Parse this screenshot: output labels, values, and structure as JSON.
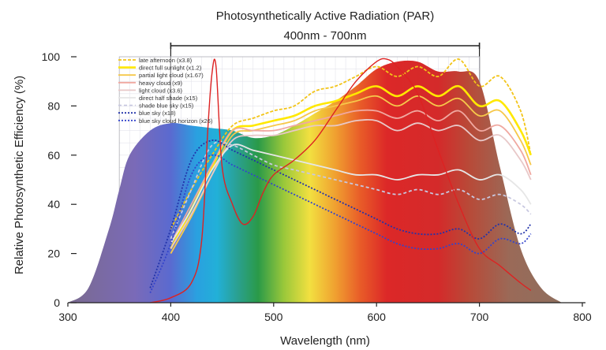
{
  "chart_data": {
    "type": "area",
    "title": "Photosynthetically Active Radiation (PAR)",
    "subtitle": "400nm - 700nm",
    "xlabel": "Wavelength (nm)",
    "ylabel": "Relative Photosynthetic Efficiency (%)",
    "xlim": [
      300,
      800
    ],
    "ylim": [
      0,
      100
    ],
    "xticks": [
      300,
      400,
      500,
      600,
      700,
      800
    ],
    "yticks": [
      0,
      20,
      40,
      60,
      80,
      100
    ],
    "par_range": [
      400,
      700
    ],
    "efficiency_curve": {
      "x": [
        300,
        320,
        340,
        350,
        360,
        380,
        400,
        420,
        440,
        460,
        480,
        500,
        520,
        540,
        560,
        580,
        600,
        620,
        640,
        660,
        680,
        700,
        720,
        740,
        760,
        780
      ],
      "y": [
        0,
        6,
        30,
        46,
        60,
        70,
        73,
        72,
        71,
        70,
        67,
        68,
        72,
        77,
        82,
        88,
        95,
        98,
        98,
        94,
        94,
        90,
        55,
        22,
        6,
        0
      ]
    },
    "chlorophyll_curve": {
      "color": "#dd2222",
      "x": [
        380,
        400,
        420,
        430,
        436,
        440,
        444,
        450,
        460,
        470,
        480,
        490,
        500,
        520,
        540,
        560,
        580,
        600,
        610,
        620,
        640,
        660,
        680,
        700,
        720,
        740,
        750
      ],
      "y": [
        0,
        2,
        8,
        25,
        70,
        93,
        96,
        55,
        40,
        32,
        35,
        45,
        52,
        58,
        66,
        78,
        90,
        98,
        99,
        96,
        85,
        62,
        40,
        22,
        15,
        8,
        5
      ]
    },
    "series": [
      {
        "name": "late afternoon (x3.8)",
        "color": "#f2c418",
        "dash": "4,2",
        "x": [
          400,
          420,
          440,
          460,
          480,
          500,
          520,
          540,
          560,
          580,
          600,
          620,
          640,
          660,
          680,
          700,
          720,
          740,
          750
        ],
        "y": [
          30,
          46,
          60,
          72,
          75,
          78,
          80,
          86,
          88,
          92,
          96,
          92,
          96,
          92,
          99,
          88,
          92,
          78,
          60
        ]
      },
      {
        "name": "direct full sunlight (x1.2)",
        "color": "#ffe800",
        "dash": "",
        "x": [
          400,
          420,
          440,
          460,
          480,
          500,
          520,
          540,
          560,
          580,
          600,
          620,
          640,
          660,
          680,
          700,
          720,
          740,
          750
        ],
        "y": [
          22,
          38,
          55,
          70,
          72,
          74,
          76,
          80,
          82,
          85,
          88,
          84,
          88,
          84,
          88,
          80,
          82,
          70,
          60
        ]
      },
      {
        "name": "partial light cloud (x1.67)",
        "color": "#f6c84a",
        "dash": "",
        "x": [
          400,
          420,
          440,
          460,
          480,
          500,
          520,
          540,
          560,
          580,
          600,
          620,
          640,
          660,
          680,
          700,
          720,
          740,
          750
        ],
        "y": [
          20,
          35,
          52,
          68,
          70,
          72,
          74,
          78,
          80,
          82,
          84,
          80,
          84,
          80,
          83,
          76,
          78,
          66,
          56
        ]
      },
      {
        "name": "heavy cloud (x9)",
        "color": "#f0a8a0",
        "dash": "",
        "x": [
          400,
          420,
          440,
          460,
          480,
          500,
          520,
          540,
          560,
          580,
          600,
          620,
          640,
          660,
          680,
          700,
          720,
          740,
          750
        ],
        "y": [
          24,
          40,
          56,
          70,
          70,
          70,
          72,
          74,
          76,
          78,
          78,
          75,
          78,
          74,
          78,
          70,
          72,
          62,
          52
        ]
      },
      {
        "name": "light cloud (x3.6)",
        "color": "#e8c8c8",
        "dash": "",
        "x": [
          400,
          420,
          440,
          460,
          480,
          500,
          520,
          540,
          560,
          580,
          600,
          620,
          640,
          660,
          680,
          700,
          720,
          740,
          750
        ],
        "y": [
          22,
          36,
          52,
          66,
          68,
          68,
          70,
          72,
          72,
          74,
          74,
          70,
          73,
          70,
          72,
          66,
          68,
          58,
          50
        ]
      },
      {
        "name": "direct half shade (x15)",
        "color": "#e6e6e6",
        "dash": "",
        "x": [
          400,
          420,
          440,
          460,
          480,
          500,
          520,
          540,
          560,
          580,
          600,
          620,
          640,
          660,
          680,
          700,
          720,
          740,
          750
        ],
        "y": [
          24,
          38,
          54,
          64,
          62,
          60,
          58,
          56,
          54,
          52,
          52,
          50,
          52,
          52,
          54,
          50,
          52,
          46,
          40
        ]
      },
      {
        "name": "shade blue sky (x15)",
        "color": "#c8c8e0",
        "dash": "4,3",
        "x": [
          400,
          420,
          440,
          460,
          480,
          500,
          520,
          540,
          560,
          580,
          600,
          620,
          640,
          660,
          680,
          700,
          720,
          740,
          750
        ],
        "y": [
          26,
          46,
          64,
          64,
          60,
          56,
          54,
          52,
          50,
          48,
          46,
          44,
          46,
          44,
          46,
          42,
          44,
          40,
          36
        ]
      },
      {
        "name": "blue sky (x18)",
        "color": "#2233aa",
        "dash": "2,2",
        "x": [
          380,
          400,
          420,
          440,
          460,
          480,
          500,
          520,
          540,
          560,
          580,
          600,
          620,
          640,
          660,
          680,
          700,
          720,
          740,
          750
        ],
        "y": [
          6,
          30,
          58,
          66,
          62,
          58,
          54,
          50,
          46,
          42,
          38,
          34,
          30,
          28,
          28,
          30,
          26,
          32,
          28,
          32
        ]
      },
      {
        "name": "blue sky cloud horizon (x26)",
        "color": "#3344cc",
        "dash": "2,2",
        "x": [
          380,
          400,
          420,
          440,
          460,
          480,
          500,
          520,
          540,
          560,
          580,
          600,
          620,
          640,
          660,
          680,
          700,
          720,
          740,
          750
        ],
        "y": [
          4,
          24,
          52,
          60,
          56,
          52,
          48,
          44,
          40,
          36,
          32,
          28,
          24,
          22,
          22,
          24,
          20,
          26,
          24,
          28
        ]
      }
    ],
    "legend_position": "top-left inside plot",
    "grid": true
  }
}
